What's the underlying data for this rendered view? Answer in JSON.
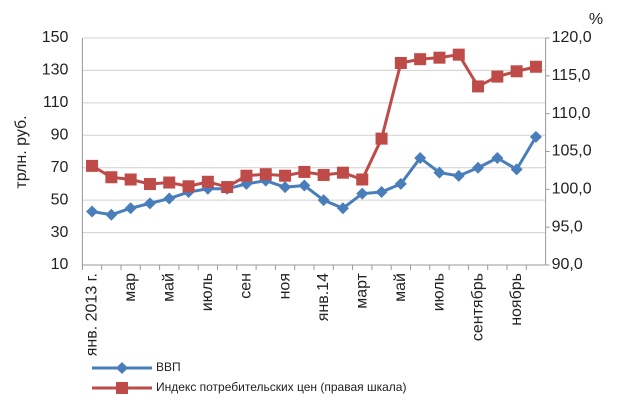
{
  "chart_data": {
    "type": "line",
    "y_label": "трлн. руб.",
    "y2_label": "%",
    "categories": [
      "янв. 2013 г.",
      null,
      "мар",
      null,
      "май",
      null,
      "июль",
      null,
      "сен",
      null,
      "ноя",
      null,
      "янв.14",
      null,
      "март",
      null,
      "май",
      null,
      "июль",
      null,
      "сентябрь",
      null,
      "ноябрь",
      null
    ],
    "series": [
      {
        "name": "ВВП",
        "color": "#4a7ebb",
        "marker": "diamond",
        "values": [
          43,
          41,
          45,
          48,
          51,
          55,
          57,
          57,
          60,
          62,
          58,
          59,
          50,
          45,
          54,
          55,
          60,
          76,
          67,
          65,
          70,
          76,
          69,
          89
        ]
      },
      {
        "name": "Индекс потребительских цен (правая шкала)",
        "color": "#be4b48",
        "marker": "square",
        "axis": "y2",
        "values": [
          103.1,
          101.6,
          101.3,
          100.7,
          100.9,
          100.4,
          101.0,
          100.3,
          101.8,
          102.0,
          101.8,
          102.3,
          101.9,
          102.2,
          101.3,
          106.7,
          116.7,
          117.2,
          117.4,
          117.8,
          113.6,
          114.9,
          115.6,
          116.2
        ]
      }
    ],
    "ylim": [
      10,
      150
    ],
    "yticks": [
      10,
      30,
      50,
      70,
      90,
      110,
      130,
      150
    ],
    "y2lim": [
      90,
      120
    ],
    "y2ticks": [
      {
        "value": 90,
        "label": "90,0"
      },
      {
        "value": 95,
        "label": "95,0"
      },
      {
        "value": 100,
        "label": "100,0"
      },
      {
        "value": 105,
        "label": "105,0"
      },
      {
        "value": 110,
        "label": "110,0"
      },
      {
        "value": 115,
        "label": "115,0"
      },
      {
        "value": 120,
        "label": "120,0"
      }
    ],
    "grid": true,
    "legend": "bottom"
  }
}
